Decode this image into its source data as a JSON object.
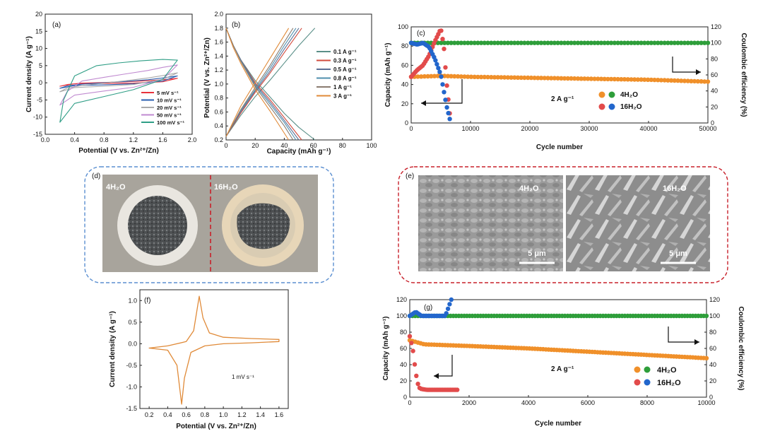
{
  "colors": {
    "cv_5": "#e8323c",
    "cv_10": "#2a5fb0",
    "cv_20": "#aaaaaa",
    "cv_50": "#c08ad0",
    "cv_100": "#2f9e86",
    "gcd_01": "#5a8f88",
    "gcd_03": "#d24b3e",
    "gcd_05": "#5c6f94",
    "gcd_08": "#4f8fae",
    "gcd_1": "#8a7c70",
    "gcd_3": "#e08a38",
    "orange": "#f0902a",
    "green": "#2e9e3a",
    "red": "#e24b4b",
    "blue": "#2266cc",
    "box_blue": "#5b8fd1",
    "box_red": "#c8202a"
  },
  "panel_a": {
    "label": "(a)",
    "xlabel": "Potential (V vs. Zn²⁺/Zn)",
    "ylabel": "Current density (A g⁻¹)",
    "xticks": [
      "0.0",
      "0.4",
      "0.8",
      "1.2",
      "1.6",
      "2.0"
    ],
    "yticks": [
      "20",
      "15",
      "10",
      "5",
      "0",
      "-5",
      "-10",
      "-15"
    ],
    "legend": [
      "5 mV s⁻¹",
      "10 mV s⁻¹",
      "20 mV s⁻¹",
      "50 mV s⁻¹",
      "100 mV s⁻¹"
    ]
  },
  "panel_b": {
    "label": "(b)",
    "xlabel": "Capacity (mAh g⁻¹)",
    "ylabel": "Potential (V vs. Zn²⁺/Zn)",
    "xticks": [
      "0",
      "20",
      "40",
      "60",
      "80",
      "100"
    ],
    "yticks": [
      "2.0",
      "1.8",
      "1.6",
      "1.4",
      "1.2",
      "1.0",
      "0.8",
      "0.6",
      "0.4",
      "0.2"
    ],
    "legend": [
      "0.1 A g⁻¹",
      "0.3 A g⁻¹",
      "0.5 A g⁻¹",
      "0.8 A g⁻¹",
      "1 A g⁻¹",
      "3 A g⁻¹"
    ]
  },
  "panel_c": {
    "label": "(c)",
    "xlabel": "Cycle number",
    "ylabel": "Capacity (mAh g⁻¹)",
    "ylabel_right": "Coulombic efficiency (%)",
    "xticks": [
      "0",
      "10000",
      "20000",
      "30000",
      "40000",
      "50000"
    ],
    "yticks": [
      "100",
      "80",
      "60",
      "40",
      "20",
      "0"
    ],
    "yticks_right": [
      "120",
      "100",
      "80",
      "60",
      "40",
      "20",
      "0"
    ],
    "current": "2 A g⁻¹",
    "legend": [
      "4H₂O",
      "16H₂O"
    ]
  },
  "panel_d": {
    "label": "(d)",
    "left_label": "4H₂O",
    "right_label": "16H₂O"
  },
  "panel_e": {
    "label": "(e)",
    "left_label": "4H₂O",
    "right_label": "16H₂O",
    "scale_left": "5 μm",
    "scale_right": "5 μm"
  },
  "panel_f": {
    "label": "(f)",
    "xlabel": "Potential (V vs. Zn²⁺/Zn)",
    "ylabel": "Current density (A g⁻¹)",
    "xticks": [
      "0.2",
      "0.4",
      "0.6",
      "0.8",
      "1.0",
      "1.2",
      "1.4",
      "1.6"
    ],
    "yticks": [
      "1.0",
      "0.5",
      "0.0",
      "-0.5",
      "-1.0",
      "-1.5"
    ],
    "rate": "1 mV s⁻¹"
  },
  "panel_g": {
    "label": "(g)",
    "xlabel": "Cycle number",
    "ylabel": "Capacity (mAh g⁻¹)",
    "ylabel_right": "Coulombic efficiency (%)",
    "xticks": [
      "0",
      "2000",
      "4000",
      "6000",
      "8000",
      "10000"
    ],
    "yticks": [
      "120",
      "100",
      "80",
      "60",
      "40",
      "20",
      "0"
    ],
    "yticks_right": [
      "120",
      "100",
      "80",
      "60",
      "40",
      "20",
      "0"
    ],
    "current": "2 A g⁻¹",
    "legend": [
      "4H₂O",
      "16H₂O"
    ]
  },
  "chart_data": [
    {
      "panel": "a",
      "type": "line",
      "xlabel": "Potential (V vs. Zn²⁺/Zn)",
      "ylabel": "Current density (A g⁻¹)",
      "xlim": [
        0,
        2.0
      ],
      "ylim": [
        -15,
        20
      ],
      "series": [
        {
          "name": "5 mV s⁻¹",
          "x": [
            0.2,
            0.3,
            0.5,
            0.8,
            1.1,
            1.4,
            1.6,
            1.8,
            1.6,
            1.2,
            0.8,
            0.4,
            0.2
          ],
          "y": [
            -1.0,
            -0.5,
            -0.1,
            0.1,
            0.3,
            0.6,
            0.9,
            1.3,
            0.3,
            -0.1,
            -0.2,
            -0.3,
            -1.0
          ]
        },
        {
          "name": "10 mV s⁻¹",
          "x": [
            0.2,
            0.3,
            0.5,
            0.8,
            1.1,
            1.4,
            1.6,
            1.8,
            1.6,
            1.2,
            0.8,
            0.4,
            0.2
          ],
          "y": [
            -1.6,
            -0.9,
            -0.4,
            0.0,
            0.4,
            0.9,
            1.4,
            2.0,
            0.5,
            -0.3,
            -0.6,
            -0.8,
            -1.6
          ]
        },
        {
          "name": "20 mV s⁻¹",
          "x": [
            0.2,
            0.3,
            0.5,
            0.8,
            1.1,
            1.4,
            1.6,
            1.8,
            1.6,
            1.2,
            0.8,
            0.4,
            0.2
          ],
          "y": [
            -2.6,
            -1.5,
            -0.8,
            -0.1,
            0.6,
            1.4,
            2.1,
            2.9,
            1.0,
            -0.5,
            -1.0,
            -1.4,
            -2.6
          ]
        },
        {
          "name": "50 mV s⁻¹",
          "x": [
            0.2,
            0.3,
            0.5,
            0.8,
            1.1,
            1.4,
            1.6,
            1.8,
            1.6,
            1.2,
            0.8,
            0.4,
            0.2
          ],
          "y": [
            -6.5,
            -2.5,
            0.5,
            1.6,
            2.6,
            3.6,
            4.5,
            5.2,
            1.0,
            -1.3,
            -2.4,
            -3.6,
            -6.5
          ]
        },
        {
          "name": "100 mV s⁻¹",
          "x": [
            0.2,
            0.25,
            0.4,
            0.7,
            1.0,
            1.3,
            1.6,
            1.8,
            1.6,
            1.2,
            0.8,
            0.4,
            0.2
          ],
          "y": [
            -11.5,
            -5.0,
            2.0,
            5.0,
            5.8,
            6.4,
            6.8,
            6.6,
            1.0,
            -2.0,
            -4.0,
            -6.0,
            -11.5
          ]
        }
      ]
    },
    {
      "panel": "b",
      "type": "line",
      "xlabel": "Capacity (mAh g⁻¹)",
      "ylabel": "Potential (V vs. Zn²⁺/Zn)",
      "xlim": [
        0,
        100
      ],
      "ylim": [
        0.2,
        2.0
      ],
      "series": [
        {
          "name": "0.1 A g⁻¹",
          "discharge": {
            "x": [
              0,
              5,
              10,
              20,
              30,
              40,
              50,
              61
            ],
            "y": [
              1.8,
              1.55,
              1.35,
              1.05,
              0.82,
              0.58,
              0.38,
              0.2
            ]
          },
          "charge": {
            "x": [
              0,
              10,
              20,
              30,
              40,
              50,
              61
            ],
            "y": [
              0.25,
              0.55,
              0.82,
              1.05,
              1.3,
              1.55,
              1.8
            ]
          }
        },
        {
          "name": "0.3 A g⁻¹",
          "discharge": {
            "x": [
              0,
              5,
              10,
              20,
              30,
              40,
              52
            ],
            "y": [
              1.8,
              1.55,
              1.35,
              1.02,
              0.78,
              0.52,
              0.2
            ]
          },
          "charge": {
            "x": [
              0,
              10,
              20,
              30,
              40,
              52
            ],
            "y": [
              0.25,
              0.58,
              0.88,
              1.15,
              1.45,
              1.8
            ]
          }
        },
        {
          "name": "0.5 A g⁻¹",
          "discharge": {
            "x": [
              0,
              5,
              10,
              20,
              30,
              40,
              50
            ],
            "y": [
              1.8,
              1.55,
              1.35,
              1.0,
              0.75,
              0.48,
              0.2
            ]
          },
          "charge": {
            "x": [
              0,
              10,
              20,
              30,
              40,
              50
            ],
            "y": [
              0.25,
              0.6,
              0.9,
              1.18,
              1.5,
              1.8
            ]
          }
        },
        {
          "name": "0.8 A g⁻¹",
          "discharge": {
            "x": [
              0,
              5,
              10,
              20,
              30,
              40,
              48
            ],
            "y": [
              1.8,
              1.55,
              1.34,
              0.98,
              0.72,
              0.45,
              0.2
            ]
          },
          "charge": {
            "x": [
              0,
              10,
              20,
              30,
              40,
              48
            ],
            "y": [
              0.25,
              0.62,
              0.92,
              1.22,
              1.55,
              1.8
            ]
          }
        },
        {
          "name": "1 A g⁻¹",
          "discharge": {
            "x": [
              0,
              5,
              10,
              20,
              30,
              40,
              46
            ],
            "y": [
              1.8,
              1.55,
              1.33,
              0.96,
              0.68,
              0.4,
              0.2
            ]
          },
          "charge": {
            "x": [
              0,
              10,
              20,
              30,
              40,
              46
            ],
            "y": [
              0.25,
              0.63,
              0.95,
              1.26,
              1.6,
              1.8
            ]
          }
        },
        {
          "name": "3 A g⁻¹",
          "discharge": {
            "x": [
              0,
              5,
              10,
              20,
              30,
              43
            ],
            "y": [
              1.8,
              1.52,
              1.3,
              0.92,
              0.62,
              0.2
            ]
          },
          "charge": {
            "x": [
              0,
              10,
              20,
              30,
              43
            ],
            "y": [
              0.25,
              0.68,
              1.02,
              1.36,
              1.8
            ]
          }
        }
      ]
    },
    {
      "panel": "c",
      "type": "scatter",
      "xlabel": "Cycle number",
      "ylabel": "Capacity (mAh g⁻¹)",
      "ylabel_right": "Coulombic efficiency (%)",
      "xlim": [
        0,
        50000
      ],
      "ylim": [
        0,
        100
      ],
      "ylim_right": [
        0,
        120
      ],
      "series": [
        {
          "name": "4H₂O capacity",
          "axis": "left",
          "x": [
            0,
            5000,
            10000,
            20000,
            30000,
            40000,
            50000
          ],
          "y": [
            48,
            49,
            48,
            47,
            46,
            45,
            43
          ]
        },
        {
          "name": "4H₂O coulombic efficiency",
          "axis": "right",
          "x": [
            0,
            10000,
            20000,
            30000,
            40000,
            50000
          ],
          "y": [
            100,
            100,
            100,
            100,
            100,
            100
          ]
        },
        {
          "name": "16H₂O capacity",
          "axis": "left",
          "x": [
            0,
            1000,
            2000,
            3000,
            4000,
            5000,
            5500,
            6000,
            6500
          ],
          "y": [
            48,
            55,
            60,
            70,
            85,
            98,
            80,
            40,
            10
          ]
        },
        {
          "name": "16H₂O coulombic efficiency",
          "axis": "right",
          "x": [
            0,
            1000,
            2000,
            3000,
            4000,
            5000,
            5500,
            6000,
            6500
          ],
          "y": [
            100,
            98,
            100,
            95,
            80,
            60,
            40,
            20,
            5
          ]
        }
      ]
    },
    {
      "panel": "f",
      "type": "line",
      "xlabel": "Potential (V vs. Zn²⁺/Zn)",
      "ylabel": "Current density (A g⁻¹)",
      "xlim": [
        0.1,
        1.7
      ],
      "ylim": [
        -1.5,
        1.25
      ],
      "series": [
        {
          "name": "1 mV s⁻¹",
          "x": [
            0.2,
            0.4,
            0.6,
            0.68,
            0.74,
            0.78,
            0.85,
            1.0,
            1.3,
            1.6,
            1.6,
            1.3,
            1.0,
            0.8,
            0.65,
            0.58,
            0.55,
            0.5,
            0.4,
            0.2
          ],
          "y": [
            -0.1,
            -0.05,
            0.05,
            0.3,
            1.1,
            0.6,
            0.25,
            0.15,
            0.12,
            0.1,
            0.05,
            0.02,
            0.0,
            -0.05,
            -0.2,
            -0.8,
            -1.4,
            -0.5,
            -0.15,
            -0.1
          ]
        }
      ]
    },
    {
      "panel": "g",
      "type": "scatter",
      "xlabel": "Cycle number",
      "ylabel": "Capacity (mAh g⁻¹)",
      "ylabel_right": "Coulombic efficiency (%)",
      "xlim": [
        0,
        10000
      ],
      "ylim": [
        0,
        120
      ],
      "ylim_right": [
        0,
        120
      ],
      "series": [
        {
          "name": "4H₂O capacity",
          "axis": "left",
          "x": [
            0,
            500,
            2000,
            4000,
            6000,
            8000,
            10000
          ],
          "y": [
            70,
            65,
            63,
            60,
            56,
            52,
            48
          ]
        },
        {
          "name": "4H₂O coulombic efficiency",
          "axis": "right",
          "x": [
            0,
            2000,
            4000,
            6000,
            8000,
            10000
          ],
          "y": [
            100,
            100,
            100,
            100,
            100,
            100
          ]
        },
        {
          "name": "16H₂O capacity",
          "axis": "left",
          "x": [
            0,
            100,
            200,
            300,
            400,
            600,
            1000,
            1600
          ],
          "y": [
            75,
            60,
            30,
            12,
            10,
            9,
            9,
            9
          ]
        },
        {
          "name": "16H₂O coulombic efficiency",
          "axis": "right",
          "x": [
            0,
            200,
            400,
            800,
            1200,
            1400
          ],
          "y": [
            100,
            105,
            100,
            100,
            100,
            120
          ]
        }
      ]
    }
  ]
}
